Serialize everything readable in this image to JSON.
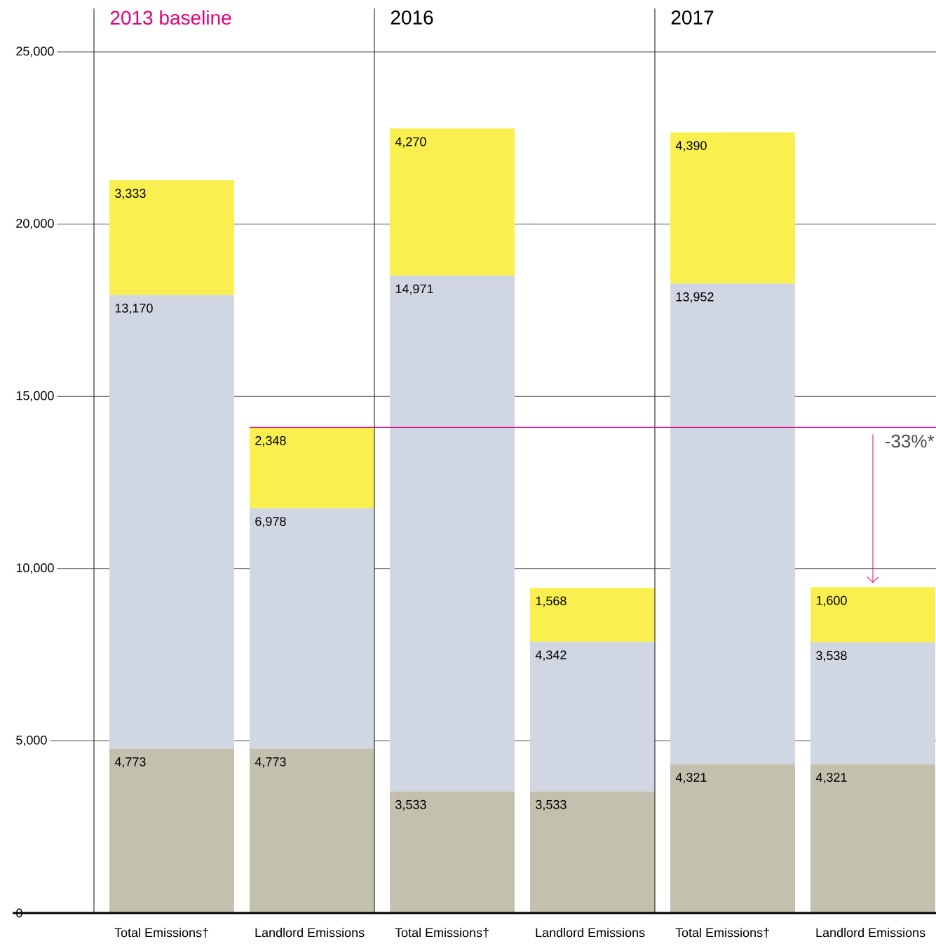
{
  "chart_data": {
    "type": "bar",
    "stacked": true,
    "categories": [
      "Total Emissions†",
      "Landlord Emissions",
      "Total Emissions†",
      "Landlord Emissions",
      "Total Emissions†",
      "Landlord Emissions"
    ],
    "series": [
      {
        "color": "#c3c0ae",
        "values": [
          4773,
          4773,
          3533,
          3533,
          4321,
          4321
        ],
        "value_labels": [
          "4,773",
          "4,773",
          "3,533",
          "3,533",
          "4,321",
          "4,321"
        ]
      },
      {
        "color": "#d0d6e2",
        "values": [
          13170,
          6978,
          14971,
          4342,
          13952,
          3538
        ],
        "value_labels": [
          "13,170",
          "6,978",
          "14,971",
          "4,342",
          "13,952",
          "3,538"
        ]
      },
      {
        "color": "#f9f04f",
        "values": [
          3333,
          2348,
          4270,
          1568,
          4390,
          1600
        ],
        "value_labels": [
          "3,333",
          "2,348",
          "4,270",
          "1,568",
          "4,390",
          "1,600"
        ]
      }
    ],
    "ylim": [
      0,
      25000
    ],
    "yticks": [
      {
        "value": 0,
        "label": "0"
      },
      {
        "value": 5000,
        "label": "5,000"
      },
      {
        "value": 10000,
        "label": "10,000"
      },
      {
        "value": 15000,
        "label": "15,000"
      },
      {
        "value": 20000,
        "label": "20,000"
      },
      {
        "value": 25000,
        "label": "25,000"
      }
    ],
    "grid": "y",
    "ref_lines": [
      {
        "axis": "y",
        "value": 14099,
        "color": "#e6007e"
      }
    ],
    "annotations": [
      "2013 baseline",
      "2016",
      "2017",
      "-33%*"
    ]
  }
}
